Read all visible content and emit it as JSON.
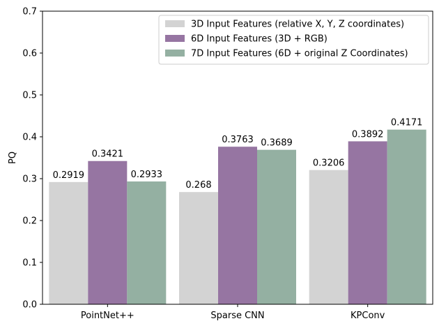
{
  "chart_data": {
    "type": "bar",
    "title": "",
    "xlabel": "",
    "ylabel": "PQ",
    "ylim": [
      0,
      0.7
    ],
    "yticks": [
      0.0,
      0.1,
      0.2,
      0.3,
      0.4,
      0.5,
      0.6,
      0.7
    ],
    "ytick_labels": [
      "0.0",
      "0.1",
      "0.2",
      "0.3",
      "0.4",
      "0.5",
      "0.6",
      "0.7"
    ],
    "categories": [
      "PointNet++",
      "Sparse CNN",
      "KPConv"
    ],
    "grid": false,
    "legend_position": "top-right",
    "series": [
      {
        "name": "3D Input Features (relative X, Y, Z coordinates)",
        "color": "#d3d3d3",
        "values": [
          0.2919,
          0.268,
          0.3206
        ],
        "labels": [
          "0.2919",
          "0.268",
          "0.3206"
        ]
      },
      {
        "name": "6D Input Features (3D + RGB)",
        "color": "#9675a2",
        "values": [
          0.3421,
          0.3763,
          0.3892
        ],
        "labels": [
          "0.3421",
          "0.3763",
          "0.3892"
        ]
      },
      {
        "name": "7D Input Features (6D + original Z Coordinates)",
        "color": "#94b0a2",
        "values": [
          0.2933,
          0.3689,
          0.4171
        ],
        "labels": [
          "0.2933",
          "0.3689",
          "0.4171"
        ]
      }
    ]
  }
}
